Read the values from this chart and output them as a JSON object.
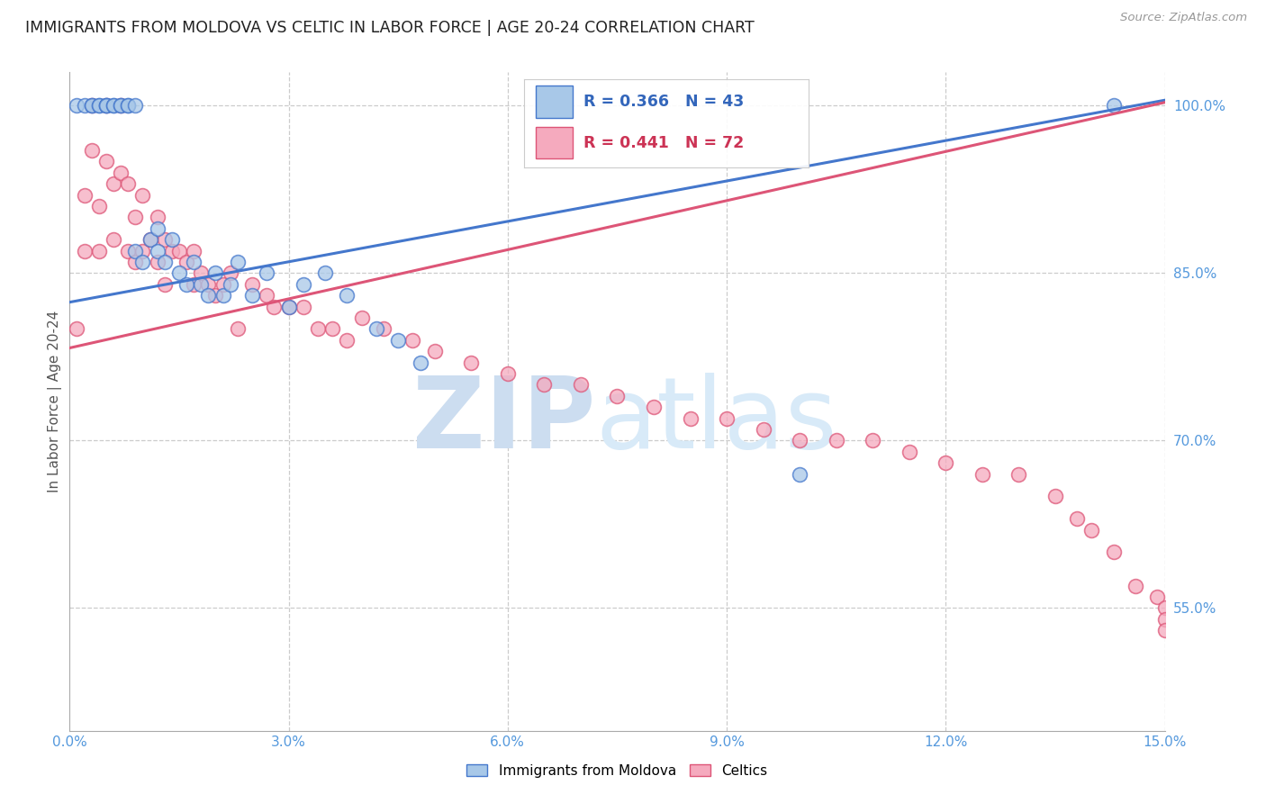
{
  "title": "IMMIGRANTS FROM MOLDOVA VS CELTIC IN LABOR FORCE | AGE 20-24 CORRELATION CHART",
  "source": "Source: ZipAtlas.com",
  "ylabel": "In Labor Force | Age 20-24",
  "xlim": [
    0.0,
    0.15
  ],
  "ylim": [
    0.44,
    1.03
  ],
  "xticks": [
    0.0,
    0.03,
    0.06,
    0.09,
    0.12,
    0.15
  ],
  "xticklabels": [
    "0.0%",
    "3.0%",
    "6.0%",
    "9.0%",
    "12.0%",
    "15.0%"
  ],
  "yticks_right": [
    0.55,
    0.7,
    0.85,
    1.0
  ],
  "ytick_right_labels": [
    "55.0%",
    "70.0%",
    "85.0%",
    "100.0%"
  ],
  "legend_r_blue": "R = 0.366",
  "legend_n_blue": "N = 43",
  "legend_r_pink": "R = 0.441",
  "legend_n_pink": "N = 72",
  "blue_color": "#a8c8e8",
  "pink_color": "#f5aabe",
  "blue_line_color": "#4477cc",
  "pink_line_color": "#dd5577",
  "background_color": "#ffffff",
  "grid_color": "#cccccc",
  "blue_scatter_x": [
    0.001,
    0.002,
    0.003,
    0.003,
    0.004,
    0.004,
    0.005,
    0.005,
    0.005,
    0.006,
    0.006,
    0.007,
    0.007,
    0.008,
    0.008,
    0.009,
    0.009,
    0.01,
    0.011,
    0.012,
    0.012,
    0.013,
    0.014,
    0.015,
    0.016,
    0.017,
    0.018,
    0.019,
    0.02,
    0.021,
    0.022,
    0.023,
    0.025,
    0.027,
    0.03,
    0.032,
    0.035,
    0.038,
    0.042,
    0.045,
    0.048,
    0.1,
    0.143
  ],
  "blue_scatter_y": [
    1.0,
    1.0,
    1.0,
    1.0,
    1.0,
    1.0,
    1.0,
    1.0,
    1.0,
    1.0,
    1.0,
    1.0,
    1.0,
    1.0,
    1.0,
    1.0,
    0.87,
    0.86,
    0.88,
    0.89,
    0.87,
    0.86,
    0.88,
    0.85,
    0.84,
    0.86,
    0.84,
    0.83,
    0.85,
    0.83,
    0.84,
    0.86,
    0.83,
    0.85,
    0.82,
    0.84,
    0.85,
    0.83,
    0.8,
    0.79,
    0.77,
    0.67,
    1.0
  ],
  "pink_scatter_x": [
    0.001,
    0.002,
    0.002,
    0.003,
    0.003,
    0.004,
    0.004,
    0.005,
    0.005,
    0.006,
    0.006,
    0.007,
    0.007,
    0.008,
    0.008,
    0.009,
    0.009,
    0.01,
    0.01,
    0.011,
    0.012,
    0.012,
    0.013,
    0.013,
    0.014,
    0.015,
    0.016,
    0.017,
    0.017,
    0.018,
    0.019,
    0.02,
    0.021,
    0.022,
    0.023,
    0.025,
    0.027,
    0.028,
    0.03,
    0.032,
    0.034,
    0.036,
    0.038,
    0.04,
    0.043,
    0.047,
    0.05,
    0.055,
    0.06,
    0.065,
    0.07,
    0.075,
    0.08,
    0.085,
    0.09,
    0.095,
    0.1,
    0.105,
    0.11,
    0.115,
    0.12,
    0.125,
    0.13,
    0.135,
    0.138,
    0.14,
    0.143,
    0.146,
    0.149,
    0.15,
    0.15,
    0.15
  ],
  "pink_scatter_y": [
    0.8,
    0.92,
    0.87,
    1.0,
    0.96,
    0.91,
    0.87,
    1.0,
    0.95,
    0.93,
    0.88,
    1.0,
    0.94,
    0.93,
    0.87,
    0.9,
    0.86,
    0.92,
    0.87,
    0.88,
    0.9,
    0.86,
    0.88,
    0.84,
    0.87,
    0.87,
    0.86,
    0.87,
    0.84,
    0.85,
    0.84,
    0.83,
    0.84,
    0.85,
    0.8,
    0.84,
    0.83,
    0.82,
    0.82,
    0.82,
    0.8,
    0.8,
    0.79,
    0.81,
    0.8,
    0.79,
    0.78,
    0.77,
    0.76,
    0.75,
    0.75,
    0.74,
    0.73,
    0.72,
    0.72,
    0.71,
    0.7,
    0.7,
    0.7,
    0.69,
    0.68,
    0.67,
    0.67,
    0.65,
    0.63,
    0.62,
    0.6,
    0.57,
    0.56,
    0.55,
    0.54,
    0.53
  ],
  "blue_trend_x": [
    0.0,
    0.15
  ],
  "blue_trend_y": [
    0.824,
    1.005
  ],
  "pink_trend_x": [
    0.0,
    0.15
  ],
  "pink_trend_y": [
    0.783,
    1.003
  ]
}
